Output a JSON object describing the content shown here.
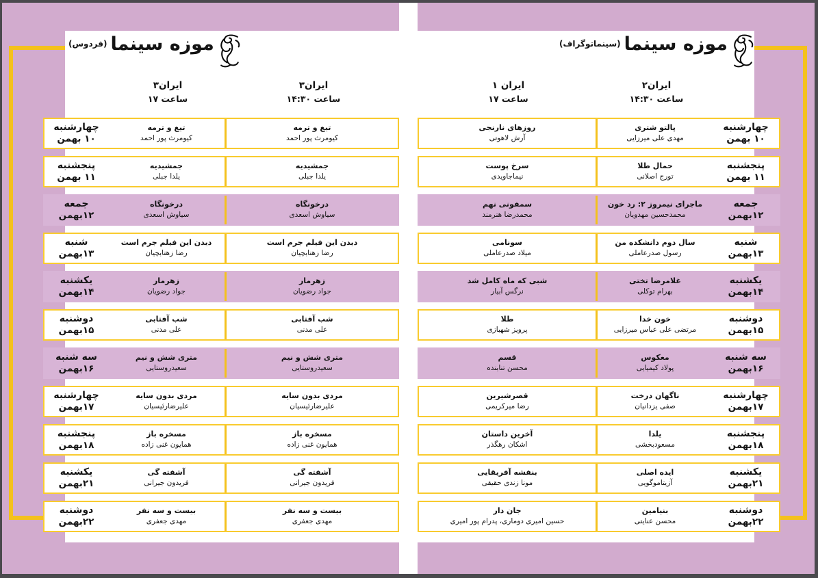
{
  "palette": {
    "frame_dark": "#4a494d",
    "background_purple": "#d2abce",
    "row_purple": "#d8b4d6",
    "yellow": "#f4c11d",
    "row_border_yellow": "#f9cb2e",
    "page_white": "#ffffff",
    "text_black": "#141414"
  },
  "pages": [
    {
      "id": "cinematograph",
      "title": "موزه سینما",
      "subtitle": "(سینماتوگراف)",
      "logo": "fajr-simorgh-logo",
      "columns": [
        {
          "hall": "ایران۲",
          "time": "ساعت ۱۴:۳۰"
        },
        {
          "hall": "ایران ۱",
          "time": "ساعت ۱۷"
        }
      ],
      "rows": [
        {
          "day": "چهارشنبه",
          "date": "۱۰ بهمن",
          "highlighted": false,
          "screenings": [
            {
              "film": "پالتو شتری",
              "director": "مهدی علی میرزایی"
            },
            {
              "film": "روزهای نارنجی",
              "director": "آرش لاهوتی"
            }
          ]
        },
        {
          "day": "پنجشنبه",
          "date": "۱۱ بهمن",
          "highlighted": false,
          "screenings": [
            {
              "film": "حمال طلا",
              "director": "تورج اصلانی"
            },
            {
              "film": "سرخ پوست",
              "director": "نیماجاویدی"
            }
          ]
        },
        {
          "day": "جمعه",
          "date": "۱۲بهمن",
          "highlighted": true,
          "screenings": [
            {
              "film": "ماجرای نیمروز ۲: رد خون",
              "director": "محمدحسین مهدویان"
            },
            {
              "film": "سمفونی نهم",
              "director": "محمدرضا هنرمند"
            }
          ]
        },
        {
          "day": "شنبه",
          "date": "۱۳بهمن",
          "highlighted": false,
          "screenings": [
            {
              "film": "سال دوم دانشکده من",
              "director": "رسول صدرعاملی"
            },
            {
              "film": "سونامی",
              "director": "میلاد صدرعاملی"
            }
          ]
        },
        {
          "day": "یکشنبه",
          "date": "۱۴بهمن",
          "highlighted": true,
          "screenings": [
            {
              "film": "غلامرضا تختی",
              "director": "بهرام توکلی"
            },
            {
              "film": "شبی که ماه کامل شد",
              "director": "نرگس آبیار"
            }
          ]
        },
        {
          "day": "دوشنبه",
          "date": "۱۵بهمن",
          "highlighted": false,
          "screenings": [
            {
              "film": "خون خدا",
              "director": "مرتضی علی عباس میرزایی"
            },
            {
              "film": "طلا",
              "director": "پرویز شهبازی"
            }
          ]
        },
        {
          "day": "سه شنبه",
          "date": "۱۶بهمن",
          "highlighted": true,
          "screenings": [
            {
              "film": "معکوس",
              "director": "پولاد کیمیایی"
            },
            {
              "film": "قسم",
              "director": "محسن تنابنده"
            }
          ]
        },
        {
          "day": "چهارشنبه",
          "date": "۱۷بهمن",
          "highlighted": false,
          "screenings": [
            {
              "film": "ناگهان درخت",
              "director": "صفی یزدانیان"
            },
            {
              "film": "قصرشیرین",
              "director": "رضا میرکریمی"
            }
          ]
        },
        {
          "day": "پنجشنبه",
          "date": "۱۸بهمن",
          "highlighted": false,
          "screenings": [
            {
              "film": "یلدا",
              "director": "مسعودبخشی"
            },
            {
              "film": "آخرین داستان",
              "director": "اشکان رهگذر"
            }
          ]
        },
        {
          "day": "یکشنبه",
          "date": "۲۱بهمن",
          "highlighted": false,
          "screenings": [
            {
              "film": "ایده اصلی",
              "director": "آزیتاموگویی"
            },
            {
              "film": "بنفشه آفریقایی",
              "director": "مونا زندی حقیقی"
            }
          ]
        },
        {
          "day": "دوشنبه",
          "date": "۲۲بهمن",
          "highlighted": false,
          "screenings": [
            {
              "film": "بنیامین",
              "director": "محسن عنایتی"
            },
            {
              "film": "جان دار",
              "director": "حسین امیری دوماری، پدرام پور امیری"
            }
          ]
        }
      ]
    },
    {
      "id": "ferdows",
      "title": "موزه سینما",
      "subtitle": "(فردوس)",
      "logo": "fajr-simorgh-logo",
      "columns": [
        {
          "hall": "ایران۳",
          "time": "ساعت ۱۴:۳۰"
        },
        {
          "hall": "ایران۳",
          "time": "ساعت ۱۷"
        }
      ],
      "rows": [
        {
          "day": "چهارشنبه",
          "date": "۱۰ بهمن",
          "highlighted": false,
          "screenings": [
            {
              "film": "تیغ و ترمه",
              "director": "کیومرث پور احمد"
            },
            {
              "film": "تیغ و ترمه",
              "director": "کیومرث پور احمد"
            }
          ]
        },
        {
          "day": "پنجشنبه",
          "date": "۱۱ بهمن",
          "highlighted": false,
          "screenings": [
            {
              "film": "جمشیدیه",
              "director": "یلدا جبلی"
            },
            {
              "film": "جمشیدیه",
              "director": "یلدا جبلی"
            }
          ]
        },
        {
          "day": "جمعه",
          "date": "۱۲بهمن",
          "highlighted": true,
          "screenings": [
            {
              "film": "درخونگاه",
              "director": "سیاوش اسعدی"
            },
            {
              "film": "درخونگاه",
              "director": "سیاوش اسعدی"
            }
          ]
        },
        {
          "day": "شنبه",
          "date": "۱۳بهمن",
          "highlighted": false,
          "screenings": [
            {
              "film": "دیدن این فیلم جرم است",
              "director": "رضا زهتابچیان"
            },
            {
              "film": "دیدن این فیلم جرم است",
              "director": "رضا زهتابچیان"
            }
          ]
        },
        {
          "day": "یکشنبه",
          "date": "۱۴بهمن",
          "highlighted": true,
          "screenings": [
            {
              "film": "زهرمار",
              "director": "جواد رضویان"
            },
            {
              "film": "زهرمار",
              "director": "جواد رضویان"
            }
          ]
        },
        {
          "day": "دوشنبه",
          "date": "۱۵بهمن",
          "highlighted": false,
          "screenings": [
            {
              "film": "شب آفتابی",
              "director": "علی مدنی"
            },
            {
              "film": "شب آفتابی",
              "director": "علی مدنی"
            }
          ]
        },
        {
          "day": "سه شنبه",
          "date": "۱۶بهمن",
          "highlighted": true,
          "screenings": [
            {
              "film": "متری شش و نیم",
              "director": "سعیدروستایی"
            },
            {
              "film": "متری شش و نیم",
              "director": "سعیدروستایی"
            }
          ]
        },
        {
          "day": "چهارشنبه",
          "date": "۱۷بهمن",
          "highlighted": false,
          "screenings": [
            {
              "film": "مردی بدون سایه",
              "director": "علیرضارئیسیان"
            },
            {
              "film": "مردی بدون سایه",
              "director": "علیرضارئیسیان"
            }
          ]
        },
        {
          "day": "پنجشنبه",
          "date": "۱۸بهمن",
          "highlighted": false,
          "screenings": [
            {
              "film": "مسخره باز",
              "director": "همایون غنی زاده"
            },
            {
              "film": "مسخره باز",
              "director": "همایون غنی زاده"
            }
          ]
        },
        {
          "day": "یکشنبه",
          "date": "۲۱بهمن",
          "highlighted": false,
          "screenings": [
            {
              "film": "آشفته گی",
              "director": "فریدون جیرانی"
            },
            {
              "film": "آشفته گی",
              "director": "فریدون جیرانی"
            }
          ]
        },
        {
          "day": "دوشنبه",
          "date": "۲۲بهمن",
          "highlighted": false,
          "screenings": [
            {
              "film": "بیست و سه نفر",
              "director": "مهدی جعفری"
            },
            {
              "film": "بیست و سه نفر",
              "director": "مهدی جعفری"
            }
          ]
        }
      ]
    }
  ]
}
